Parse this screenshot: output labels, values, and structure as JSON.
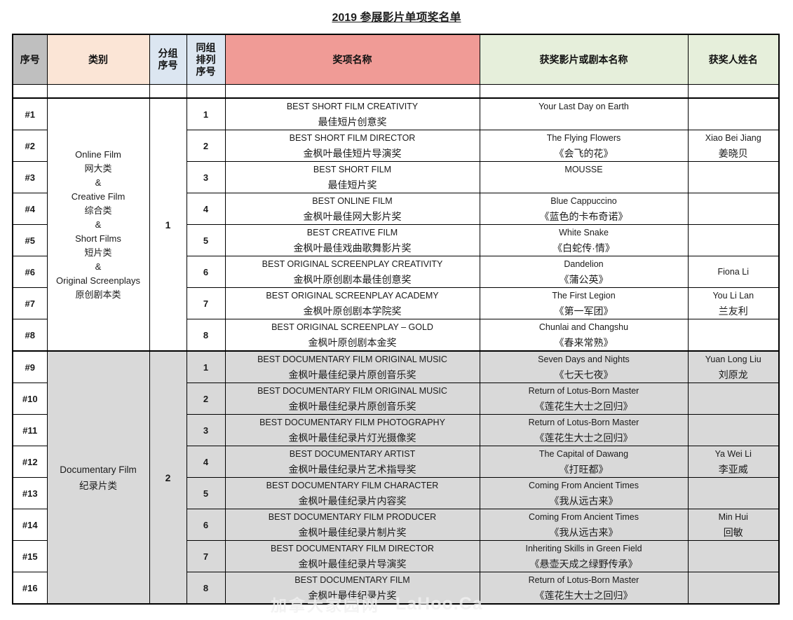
{
  "title": "2019 参展影片单项奖名单",
  "columns": {
    "sn": "序号",
    "category": "类别",
    "group": "分组\n序号",
    "order": "同组\n排列\n序号",
    "award": "奖项名称",
    "film": "获奖影片或剧本名称",
    "winner": "获奖人姓名"
  },
  "colors": {
    "header_sn": "#BFBFBF",
    "header_category": "#FBE5D6",
    "header_group": "#DCE6F1",
    "header_award": "#F09B96",
    "header_film": "#E6EFDB",
    "group2_row_bg": "#D9D9D9"
  },
  "watermark": {
    "cn": "加拿大家园网",
    "en": "LaHoo.Ca"
  },
  "groups": [
    {
      "group_no": "1",
      "category_lines": [
        "Online Film",
        "网大类",
        "&",
        "Creative Film",
        "综合类",
        "&",
        "Short Films",
        "短片类",
        "&",
        "Original Screenplays",
        "原创剧本类"
      ],
      "rows": [
        {
          "sn": "#1",
          "order": "1",
          "award_en": "BEST SHORT FILM CREATIVITY",
          "award_cn": "最佳短片创意奖",
          "film_en": "Your Last Day on Earth",
          "film_cn": "",
          "winner_en": "",
          "winner_cn": ""
        },
        {
          "sn": "#2",
          "order": "2",
          "award_en": "BEST SHORT FILM DIRECTOR",
          "award_cn": "金枫叶最佳短片导演奖",
          "film_en": "The Flying Flowers",
          "film_cn": "《会飞的花》",
          "winner_en": "Xiao Bei Jiang",
          "winner_cn": "姜晓贝"
        },
        {
          "sn": "#3",
          "order": "3",
          "award_en": "BEST SHORT FILM",
          "award_cn": "最佳短片奖",
          "film_en": "MOUSSE",
          "film_cn": "",
          "winner_en": "",
          "winner_cn": ""
        },
        {
          "sn": "#4",
          "order": "4",
          "award_en": "BEST ONLINE FILM",
          "award_cn": "金枫叶最佳网大影片奖",
          "film_en": "Blue Cappuccino",
          "film_cn": "《蓝色的卡布奇诺》",
          "winner_en": "",
          "winner_cn": ""
        },
        {
          "sn": "#5",
          "order": "5",
          "award_en": "BEST CREATIVE FILM",
          "award_cn": "金枫叶最佳戏曲歌舞影片奖",
          "film_en": "White Snake",
          "film_cn": "《白蛇传·情》",
          "winner_en": "",
          "winner_cn": ""
        },
        {
          "sn": "#6",
          "order": "6",
          "award_en": "BEST ORIGINAL SCREENPLAY CREATIVITY",
          "award_cn": "金枫叶原创剧本最佳创意奖",
          "film_en": "Dandelion",
          "film_cn": "《蒲公英》",
          "winner_en": "Fiona Li",
          "winner_cn": ""
        },
        {
          "sn": "#7",
          "order": "7",
          "award_en": "BEST ORIGINAL SCREENPLAY ACADEMY",
          "award_cn": "金枫叶原创剧本学院奖",
          "film_en": "The First Legion",
          "film_cn": "《第一军团》",
          "winner_en": "You Li Lan",
          "winner_cn": "兰友利"
        },
        {
          "sn": "#8",
          "order": "8",
          "award_en": "BEST ORIGINAL SCREENPLAY – GOLD",
          "award_cn": "金枫叶原创剧本金奖",
          "film_en": "Chunlai and Changshu",
          "film_cn": "《春来常熟》",
          "winner_en": "",
          "winner_cn": ""
        }
      ]
    },
    {
      "group_no": "2",
      "category_lines": [
        "Documentary Film",
        "纪录片类"
      ],
      "rows": [
        {
          "sn": "#9",
          "order": "1",
          "award_en": "BEST DOCUMENTARY FILM ORIGINAL MUSIC",
          "award_cn": "金枫叶最佳纪录片原创音乐奖",
          "film_en": "Seven Days and Nights",
          "film_cn": "《七天七夜》",
          "winner_en": "Yuan Long Liu",
          "winner_cn": "刘原龙"
        },
        {
          "sn": "#10",
          "order": "2",
          "award_en": "BEST DOCUMENTARY FILM ORIGINAL MUSIC",
          "award_cn": "金枫叶最佳纪录片原创音乐奖",
          "film_en": "Return of Lotus-Born Master",
          "film_cn": "《莲花生大士之回归》",
          "winner_en": "",
          "winner_cn": ""
        },
        {
          "sn": "#11",
          "order": "3",
          "award_en": "BEST DOCUMENTARY FILM PHOTOGRAPHY",
          "award_cn": "金枫叶最佳纪录片灯光摄像奖",
          "film_en": "Return of Lotus-Born Master",
          "film_cn": "《莲花生大士之回归》",
          "winner_en": "",
          "winner_cn": ""
        },
        {
          "sn": "#12",
          "order": "4",
          "award_en": "BEST DOCUMENTARY ARTIST",
          "award_cn": "金枫叶最佳纪录片艺术指导奖",
          "film_en": "The Capital of Dawang",
          "film_cn": "《打旺都》",
          "winner_en": "Ya Wei Li",
          "winner_cn": "李亚威"
        },
        {
          "sn": "#13",
          "order": "5",
          "award_en": "BEST DOCUMENTARY FILM CHARACTER",
          "award_cn": "金枫叶最佳纪录片内容奖",
          "film_en": "Coming From Ancient Times",
          "film_cn": "《我从远古来》",
          "winner_en": "",
          "winner_cn": ""
        },
        {
          "sn": "#14",
          "order": "6",
          "award_en": "BEST DOCUMENTARY FILM PRODUCER",
          "award_cn": "金枫叶最佳纪录片制片奖",
          "film_en": "Coming From Ancient Times",
          "film_cn": "《我从远古来》",
          "winner_en": "Min Hui",
          "winner_cn": "回敏"
        },
        {
          "sn": "#15",
          "order": "7",
          "award_en": "BEST DOCUMENTARY FILM DIRECTOR",
          "award_cn": "金枫叶最佳纪录片导演奖",
          "film_en": "Inheriting Skills in Green Field",
          "film_cn": "《悬壶天成之绿野传承》",
          "winner_en": "",
          "winner_cn": ""
        },
        {
          "sn": "#16",
          "order": "8",
          "award_en": "BEST DOCUMENTARY FILM",
          "award_cn": "金枫叶最佳纪录片奖",
          "film_en": "Return of Lotus-Born Master",
          "film_cn": "《莲花生大士之回归》",
          "winner_en": "",
          "winner_cn": ""
        }
      ]
    }
  ]
}
